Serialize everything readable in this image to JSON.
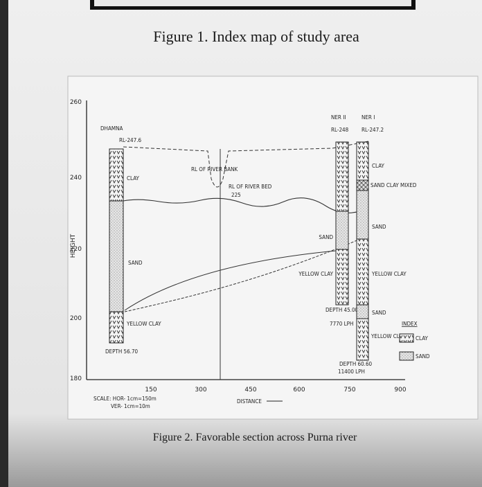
{
  "header": {
    "caption": "Figure 1. Index map of study area"
  },
  "section": {
    "y_axis_label": "HEIGHT",
    "y_ticks": [
      "260",
      "240",
      "220",
      "200",
      "180"
    ],
    "x_ticks": [
      "150",
      "300",
      "450",
      "600",
      "750",
      "900"
    ],
    "x_axis_label": "DISTANCE",
    "scale": [
      "SCALE: HOR- 1cm=150m",
      "VER- 1cm=10m"
    ],
    "wells": [
      {
        "name": "DHAMNA",
        "rl": "RL-247.6",
        "layers": [
          "CLAY",
          "SAND",
          "YELLOW CLAY"
        ],
        "depth": "DEPTH 56.70"
      },
      {
        "name": "NER II",
        "rl": "RL-248",
        "layers": [
          "SAND",
          "YELLOW CLAY"
        ],
        "depth": "DEPTH 45.00",
        "yield": "7770 LPH"
      },
      {
        "name": "NER I",
        "rl": "RL-247.2",
        "layers": [
          "CLAY",
          "SAND CLAY MIXED",
          "SAND",
          "YELLOW CLAY",
          "SAND",
          "YELLOW CLAY"
        ],
        "depth": "DEPTH 60.60",
        "yield": "11400 LPH"
      }
    ],
    "river": {
      "bank": "RL OF RIVER BANK",
      "bed": "RL OF RIVER BED",
      "bed_level": "225"
    },
    "index": {
      "title": "INDEX",
      "items": [
        "CLAY",
        "SAND"
      ]
    }
  },
  "footer": {
    "caption": "Figure 2. Favorable section across Purna river"
  }
}
